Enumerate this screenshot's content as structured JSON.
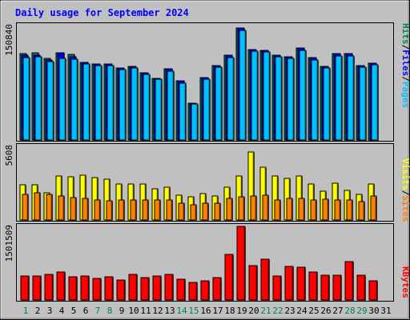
{
  "title": "Daily usage for September 2024",
  "colors": {
    "background": "#c0c0c0",
    "title": "#0000ff",
    "hits": "#00805c",
    "files": "#0000ff",
    "pages": "#00c0ff",
    "visits": "#ffff00",
    "sites": "#ff8000",
    "kbytes": "#ff0000",
    "weekend_label": "#00805c",
    "weekday_label": "#000000"
  },
  "chart_data": [
    {
      "type": "bar",
      "panel": "hits-files-pages",
      "max_label": "150840",
      "legend": [
        "Pages",
        "Files",
        "Hits"
      ],
      "legend_separator": "/",
      "ylim": [
        0,
        150840
      ],
      "categories": [
        "1",
        "2",
        "3",
        "4",
        "5",
        "6",
        "7",
        "8",
        "9",
        "10",
        "11",
        "12",
        "13",
        "14",
        "15",
        "16",
        "17",
        "18",
        "19",
        "20",
        "21",
        "22",
        "23",
        "24",
        "25",
        "26",
        "27",
        "28",
        "29",
        "30"
      ],
      "series": [
        {
          "name": "Hits",
          "values": [
            112000,
            113000,
            106000,
            113000,
            111000,
            101000,
            98700,
            98700,
            93400,
            96000,
            87400,
            80600,
            92100,
            76500,
            48300,
            81500,
            96900,
            110000,
            146000,
            118000,
            117000,
            110000,
            108000,
            120000,
            107000,
            95900,
            112000,
            112000,
            96800,
            100000
          ]
        },
        {
          "name": "Files",
          "values": [
            110000,
            110000,
            104000,
            113000,
            108000,
            101000,
            98700,
            98700,
            93400,
            96000,
            87400,
            80600,
            92100,
            76500,
            48300,
            81500,
            96900,
            110000,
            146000,
            118000,
            117000,
            110000,
            108000,
            120000,
            107000,
            95900,
            112000,
            112000,
            96800,
            100000
          ]
        },
        {
          "name": "Pages",
          "values": [
            107000,
            108000,
            102000,
            106000,
            105000,
            98700,
            96500,
            96500,
            91400,
            93800,
            85400,
            78600,
            89700,
            74300,
            47200,
            79500,
            94500,
            107000,
            142000,
            115000,
            114000,
            108000,
            106000,
            116000,
            104000,
            93600,
            109000,
            109000,
            94500,
            97800
          ]
        }
      ]
    },
    {
      "type": "bar",
      "panel": "visits-sites",
      "max_label": "5608",
      "legend": [
        "Sites",
        "Visits"
      ],
      "legend_separator": "/",
      "ylim": [
        0,
        5608
      ],
      "categories": [
        "1",
        "2",
        "3",
        "4",
        "5",
        "6",
        "7",
        "8",
        "9",
        "10",
        "11",
        "12",
        "13",
        "14",
        "15",
        "16",
        "17",
        "18",
        "19",
        "20",
        "21",
        "22",
        "23",
        "24",
        "25",
        "26",
        "27",
        "28",
        "29",
        "30"
      ],
      "series": [
        {
          "name": "Visits",
          "values": [
            2670,
            2670,
            2050,
            3290,
            3230,
            3350,
            3170,
            3050,
            2730,
            2730,
            2730,
            2370,
            2490,
            1870,
            1740,
            2000,
            1830,
            2490,
            3290,
            5110,
            4000,
            3290,
            3110,
            3290,
            2730,
            2180,
            2800,
            2240,
            1930,
            2730
          ]
        },
        {
          "name": "Sites",
          "values": [
            1930,
            2050,
            1930,
            1800,
            1680,
            1620,
            1500,
            1440,
            1500,
            1500,
            1500,
            1500,
            1500,
            1250,
            1130,
            1250,
            1250,
            1620,
            1740,
            1800,
            1860,
            1500,
            1620,
            1620,
            1500,
            1560,
            1500,
            1500,
            1380,
            1800
          ]
        }
      ]
    },
    {
      "type": "bar",
      "panel": "kbytes",
      "max_label": "1501509",
      "legend": [
        "KBytes"
      ],
      "ylim": [
        0,
        1501509
      ],
      "categories": [
        "1",
        "2",
        "3",
        "4",
        "5",
        "6",
        "7",
        "8",
        "9",
        "10",
        "11",
        "12",
        "13",
        "14",
        "15",
        "16",
        "17",
        "18",
        "19",
        "20",
        "21",
        "22",
        "23",
        "24",
        "25",
        "26",
        "27",
        "28",
        "29",
        "30"
      ],
      "series": [
        {
          "name": "KBytes",
          "values": [
            480000,
            480000,
            510000,
            570000,
            470000,
            490000,
            430000,
            470000,
            410000,
            520000,
            460000,
            490000,
            510000,
            420000,
            360000,
            380000,
            450000,
            920000,
            1480000,
            690000,
            820000,
            490000,
            680000,
            660000,
            560000,
            500000,
            500000,
            780000,
            500000,
            380000
          ]
        }
      ]
    }
  ],
  "x_axis": {
    "labels": [
      "1",
      "2",
      "3",
      "4",
      "5",
      "6",
      "7",
      "8",
      "9",
      "10",
      "11",
      "12",
      "13",
      "14",
      "15",
      "16",
      "17",
      "18",
      "19",
      "20",
      "21",
      "22",
      "23",
      "24",
      "25",
      "26",
      "27",
      "28",
      "29",
      "30",
      "31"
    ],
    "weekend": [
      1,
      7,
      8,
      14,
      15,
      21,
      22,
      28,
      29
    ]
  }
}
